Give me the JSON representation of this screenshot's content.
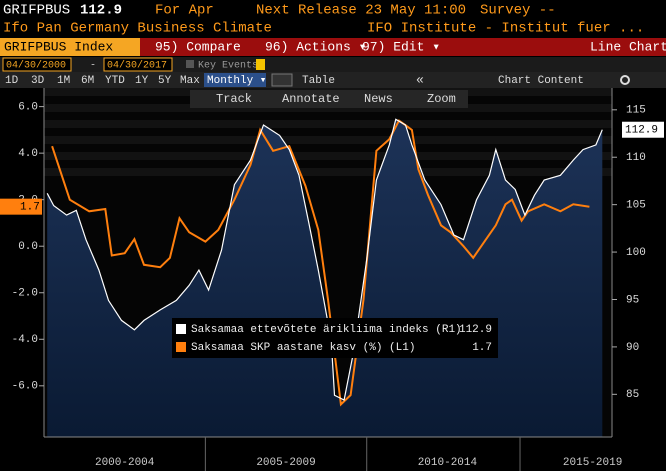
{
  "ui": {
    "ticker": "GRIFPBUS",
    "price": "112.9",
    "period": "For Apr",
    "next_release": "Next Release 23 May 11:00",
    "survey": "Survey --",
    "description": "Ifo Pan Germany Business Climate",
    "source": "IFO Institute - Institut fuer ...",
    "security": "GRIFPBUS Index",
    "menu": [
      "95) Compare",
      "96) Actions ▾",
      "97) Edit ▾"
    ],
    "view": "Line Chart",
    "start_date": "04/30/2000",
    "end_date": "04/30/2017",
    "key_events": "Key Events",
    "ranges": [
      "1D",
      "3D",
      "1M",
      "6M",
      "YTD",
      "1Y",
      "5Y",
      "Max"
    ],
    "frequency": "Monthly ▾",
    "table": "Table",
    "collapse": "«",
    "chart_content": "Chart Content",
    "tools": [
      "Track",
      "Annotate",
      "News",
      "Zoom"
    ]
  },
  "chart_data": {
    "type": "line",
    "series": [
      {
        "name": "Saksamaa ettevõtete ärikliima indeks (R1)",
        "color": "#ffffff",
        "axis": "y2",
        "last_label": "112.9",
        "x": [
          2000.1,
          2000.3,
          2000.7,
          2001.0,
          2001.3,
          2001.7,
          2002.0,
          2002.4,
          2002.8,
          2003.1,
          2003.6,
          2004.1,
          2004.5,
          2004.8,
          2005.1,
          2005.5,
          2005.9,
          2006.4,
          2006.8,
          2007.3,
          2007.6,
          2007.9,
          2008.2,
          2008.5,
          2008.9,
          2009.0,
          2009.3,
          2009.6,
          2010.0,
          2010.3,
          2010.7,
          2010.9,
          2011.2,
          2011.4,
          2011.8,
          2012.3,
          2012.7,
          2013.0,
          2013.4,
          2013.8,
          2014.0,
          2014.3,
          2014.6,
          2014.9,
          2015.2,
          2015.5,
          2016.0,
          2016.4,
          2016.7,
          2017.1,
          2017.3
        ],
        "values": [
          106.2,
          104.9,
          103.9,
          104.4,
          101.3,
          98.1,
          94.9,
          92.8,
          91.8,
          92.8,
          93.9,
          94.9,
          96.5,
          98.1,
          96.0,
          100.2,
          107.1,
          109.7,
          113.4,
          112.3,
          110.8,
          108.1,
          103.2,
          98.1,
          90.7,
          84.9,
          84.4,
          89.6,
          99.2,
          107.6,
          111.3,
          114.0,
          113.4,
          111.3,
          107.6,
          105.0,
          101.8,
          101.3,
          105.5,
          108.1,
          110.8,
          107.6,
          106.6,
          103.9,
          106.0,
          107.6,
          108.1,
          109.7,
          110.8,
          111.3,
          112.9
        ]
      },
      {
        "name": "Saksamaa SKP aastane kasv (%) (L1)",
        "color": "#ff7f0e",
        "axis": "y",
        "last_label": "1.7",
        "x": [
          2000.25,
          2000.8,
          2001.4,
          2001.9,
          2002.1,
          2002.5,
          2002.8,
          2003.1,
          2003.6,
          2003.9,
          2004.2,
          2004.5,
          2005.0,
          2005.4,
          2005.9,
          2006.4,
          2006.7,
          2007.1,
          2007.6,
          2008.1,
          2008.5,
          2008.8,
          2009.2,
          2009.5,
          2009.9,
          2010.3,
          2010.7,
          2011.0,
          2011.2,
          2011.4,
          2011.6,
          2011.9,
          2012.3,
          2012.6,
          2013.0,
          2013.3,
          2013.7,
          2014.0,
          2014.3,
          2014.5,
          2014.8,
          2015.0,
          2015.5,
          2016.0,
          2016.4,
          2016.9
        ],
        "values": [
          4.3,
          2.0,
          1.5,
          1.6,
          -0.4,
          -0.3,
          0.3,
          -0.8,
          -0.9,
          -0.5,
          1.2,
          0.6,
          0.2,
          0.7,
          2.0,
          3.5,
          5.0,
          4.1,
          4.3,
          2.6,
          0.7,
          -2.3,
          -6.8,
          -6.4,
          -2.3,
          4.1,
          4.6,
          5.4,
          5.2,
          5.0,
          3.3,
          2.2,
          0.9,
          0.6,
          0.0,
          -0.5,
          0.3,
          0.9,
          1.8,
          2.0,
          1.1,
          1.5,
          1.8,
          1.5,
          1.8,
          1.7
        ]
      }
    ],
    "xlim": [
      2000,
      2017.6
    ],
    "xticks": [
      {
        "value": 2002.5,
        "label": "2000-2004"
      },
      {
        "value": 2007.5,
        "label": "2005-2009"
      },
      {
        "value": 2012.5,
        "label": "2010-2014"
      },
      {
        "value": 2017.0,
        "label": "2015-2019"
      }
    ],
    "ylim": [
      -8.2,
      6.8
    ],
    "yticks": [
      {
        "value": -6,
        "label": "-6.0"
      },
      {
        "value": -4,
        "label": "-4.0"
      },
      {
        "value": -2,
        "label": "-2.0"
      },
      {
        "value": 0,
        "label": "0.0"
      },
      {
        "value": 2,
        "label": "2.0"
      },
      {
        "value": 4,
        "label": "4.0"
      },
      {
        "value": 6,
        "label": "6.0"
      }
    ],
    "y2lim": [
      80.5,
      117.3
    ],
    "y2ticks": [
      85,
      90,
      95,
      100,
      105,
      110,
      115
    ]
  }
}
